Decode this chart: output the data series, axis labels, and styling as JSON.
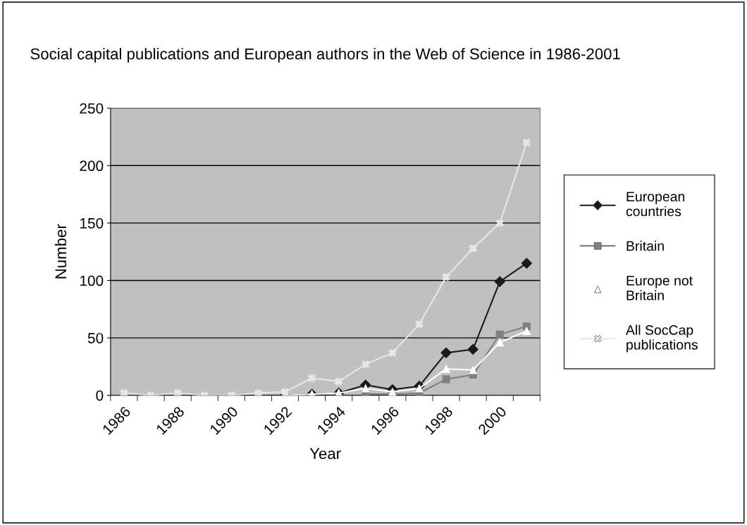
{
  "chart_data": {
    "type": "line",
    "title": "Social capital publications and European authors in the Web of Science in 1986-2001",
    "xlabel": "Year",
    "ylabel": "Number",
    "categories": [
      "1986",
      null,
      "1988",
      null,
      "1990",
      null,
      "1992",
      null,
      "1994",
      null,
      "1996",
      null,
      "1998",
      null,
      "2000",
      null
    ],
    "series": [
      {
        "name": "European countries",
        "color": "#1a1a1a",
        "marker": "diamond",
        "values": [
          null,
          null,
          null,
          null,
          null,
          null,
          0,
          1,
          2,
          9,
          5,
          8,
          37,
          40,
          99,
          115
        ]
      },
      {
        "name": "Britain",
        "color": "#808080",
        "marker": "square",
        "values": [
          null,
          null,
          null,
          null,
          null,
          null,
          null,
          null,
          null,
          1,
          1,
          2,
          14,
          18,
          53,
          60
        ]
      },
      {
        "name": "Europe not Britain",
        "color": "#ffffff",
        "marker": "triangle",
        "values": [
          null,
          null,
          null,
          null,
          null,
          null,
          0,
          1,
          2,
          6,
          3,
          6,
          23,
          22,
          46,
          56
        ]
      },
      {
        "name": "All SocCap publications",
        "color": "#e6e6e6",
        "marker": "cross",
        "values": [
          2,
          0,
          2,
          0,
          0,
          2,
          3,
          15,
          12,
          27,
          37,
          62,
          103,
          128,
          150,
          220
        ]
      }
    ],
    "ylim": [
      0,
      250
    ],
    "yticks": [
      0,
      50,
      100,
      150,
      200,
      250
    ],
    "grid": "y",
    "legend": "right"
  }
}
